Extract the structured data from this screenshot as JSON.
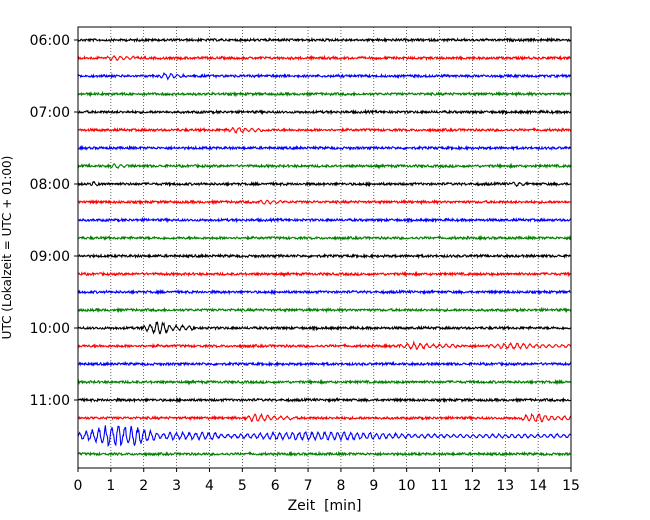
{
  "chart_data": {
    "type": "line",
    "title": "",
    "xlabel": "Zeit  [min]",
    "ylabel": "UTC (Lokalzeit = UTC + 01:00)",
    "xlim": [
      0,
      15
    ],
    "xticks": [
      0,
      1,
      2,
      3,
      4,
      5,
      6,
      7,
      8,
      9,
      10,
      11,
      12,
      13,
      14,
      15
    ],
    "xtick_labels": [
      "0",
      "1",
      "2",
      "3",
      "4",
      "5",
      "6",
      "7",
      "8",
      "9",
      "10",
      "11",
      "12",
      "13",
      "14",
      "15"
    ],
    "ytick_labels": [
      "06:00",
      "07:00",
      "08:00",
      "09:00",
      "10:00",
      "11:00"
    ],
    "trace_start": "06:00",
    "trace_end": "11:45",
    "trace_interval_min": 15,
    "trace_colors": [
      "#000000",
      "#ff0000",
      "#0000ff",
      "#008000"
    ],
    "vertical_grid": true,
    "grid_style": "dotted",
    "events": [
      {
        "time": "06:15",
        "x_start": 0.9,
        "x_end": 1.7,
        "amp": 0.18
      },
      {
        "time": "06:30",
        "x_start": 2.5,
        "x_end": 3.2,
        "amp": 0.22
      },
      {
        "time": "07:15",
        "x_start": 4.6,
        "x_end": 5.6,
        "amp": 0.25
      },
      {
        "time": "07:45",
        "x_start": 1.0,
        "x_end": 1.5,
        "amp": 0.15
      },
      {
        "time": "08:00",
        "x_start": 0.4,
        "x_end": 0.6,
        "amp": 0.2
      },
      {
        "time": "08:00",
        "x_start": 13.2,
        "x_end": 13.6,
        "amp": 0.18
      },
      {
        "time": "08:15",
        "x_start": 5.5,
        "x_end": 6.2,
        "amp": 0.14
      },
      {
        "time": "10:00",
        "x_start": 2.0,
        "x_end": 3.5,
        "amp": 0.55
      },
      {
        "time": "10:15",
        "x_start": 9.8,
        "x_end": 11.5,
        "amp": 0.22
      },
      {
        "time": "10:15",
        "x_start": 12.5,
        "x_end": 15.0,
        "amp": 0.18
      },
      {
        "time": "11:15",
        "x_start": 5.1,
        "x_end": 6.5,
        "amp": 0.3
      },
      {
        "time": "11:15",
        "x_start": 13.5,
        "x_end": 15.0,
        "amp": 0.4
      },
      {
        "time": "11:30",
        "x_start": 0.0,
        "x_end": 4.2,
        "amp": 1.05
      },
      {
        "time": "11:30",
        "x_start": 4.2,
        "x_end": 15.0,
        "amp": 0.3
      }
    ]
  }
}
